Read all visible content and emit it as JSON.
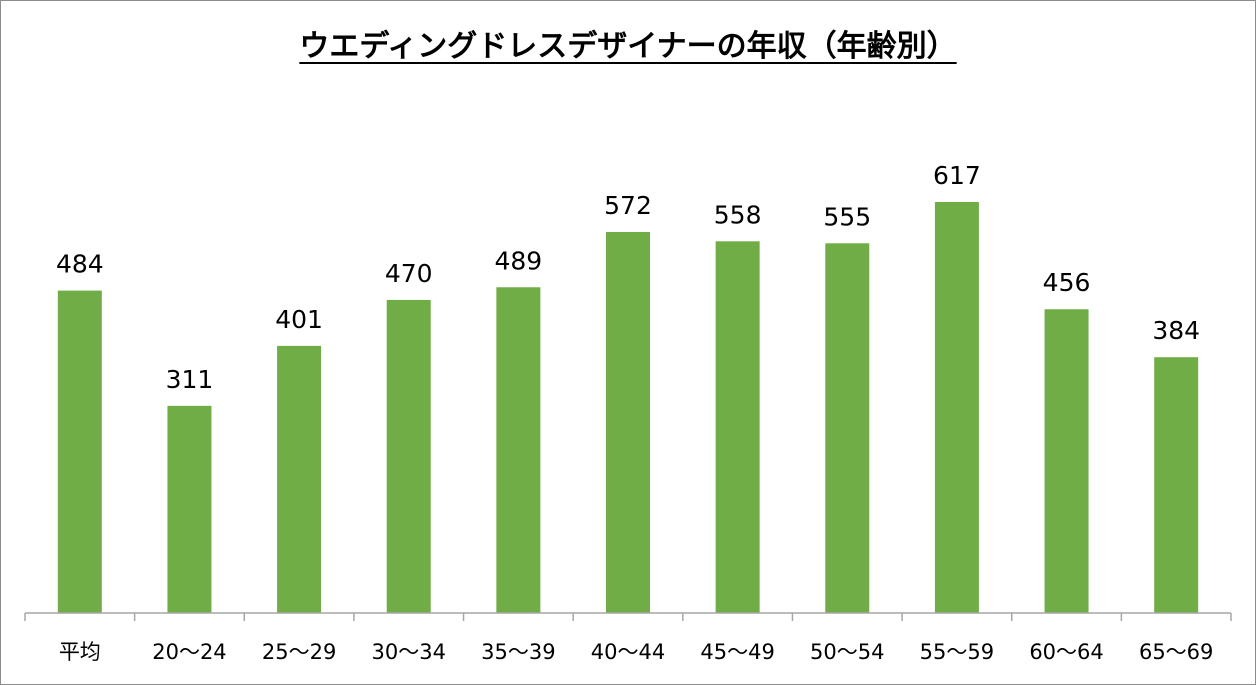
{
  "chart_data": {
    "type": "bar",
    "title": "ウエディングドレスデザイナーの年収（年齢別）",
    "xlabel": "",
    "ylabel": "",
    "categories": [
      "平均",
      "20〜24",
      "25〜29",
      "30〜34",
      "35〜39",
      "40〜44",
      "45〜49",
      "50〜54",
      "55〜59",
      "60〜64",
      "65〜69"
    ],
    "values": [
      484,
      311,
      401,
      470,
      489,
      572,
      558,
      555,
      617,
      456,
      384
    ],
    "ylim": [
      0,
      700
    ],
    "grid": false,
    "legend": "none",
    "bar_color": "#70ad47",
    "axis_color": "#a6a6a6"
  }
}
